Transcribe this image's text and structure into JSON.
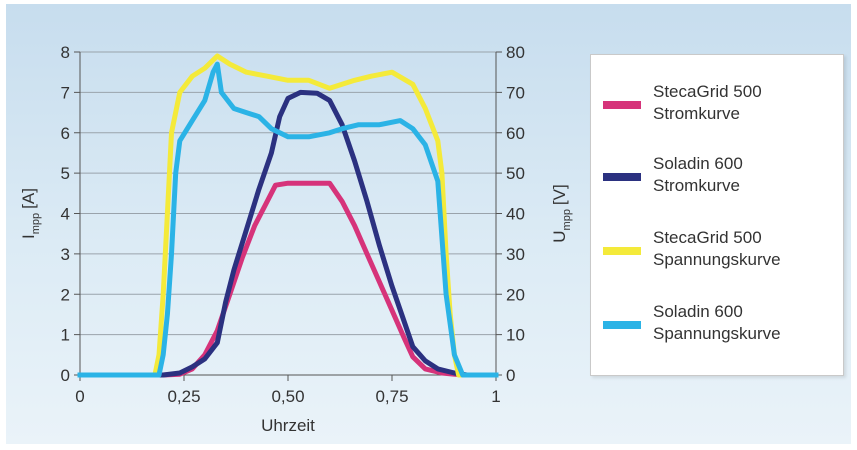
{
  "chart_data": {
    "type": "line",
    "x_axis": {
      "label": "Uhrzeit",
      "range": [
        0,
        1
      ],
      "ticks": [
        0,
        0.25,
        0.5,
        0.75,
        1
      ],
      "tick_labels": [
        "0",
        "0,25",
        "0,50",
        "0,75",
        "1"
      ]
    },
    "y_left": {
      "label": "I",
      "label_subscript": "mpp",
      "unit": "[A]",
      "range": [
        0,
        8
      ],
      "ticks": [
        0,
        1,
        2,
        3,
        4,
        5,
        6,
        7,
        8
      ],
      "tick_labels": [
        "0",
        "1",
        "2",
        "3",
        "4",
        "5",
        "6",
        "7",
        "8"
      ]
    },
    "y_right": {
      "label": "U",
      "label_subscript": "mpp",
      "unit": "[V]",
      "range": [
        0,
        80
      ],
      "ticks": [
        0,
        10,
        20,
        30,
        40,
        50,
        60,
        70,
        80
      ],
      "tick_labels": [
        "0",
        "10",
        "20",
        "30",
        "40",
        "50",
        "60",
        "70",
        "80"
      ]
    },
    "grid": true,
    "legend_position": "right",
    "series": [
      {
        "name": "StecaGrid 500 Stromkurve",
        "axis": "left",
        "color": "#d6337a",
        "points": [
          [
            0,
            0
          ],
          [
            0.2,
            0
          ],
          [
            0.24,
            0.02
          ],
          [
            0.27,
            0.15
          ],
          [
            0.3,
            0.5
          ],
          [
            0.33,
            1.1
          ],
          [
            0.36,
            2.0
          ],
          [
            0.39,
            2.9
          ],
          [
            0.42,
            3.7
          ],
          [
            0.45,
            4.3
          ],
          [
            0.47,
            4.7
          ],
          [
            0.5,
            4.75
          ],
          [
            0.55,
            4.75
          ],
          [
            0.6,
            4.75
          ],
          [
            0.63,
            4.3
          ],
          [
            0.66,
            3.7
          ],
          [
            0.69,
            3.0
          ],
          [
            0.72,
            2.3
          ],
          [
            0.75,
            1.6
          ],
          [
            0.78,
            0.9
          ],
          [
            0.8,
            0.45
          ],
          [
            0.83,
            0.15
          ],
          [
            0.87,
            0.05
          ],
          [
            0.92,
            0
          ],
          [
            1,
            0
          ]
        ]
      },
      {
        "name": "Soladin 600 Stromkurve",
        "axis": "left",
        "color": "#2b3180",
        "points": [
          [
            0,
            0
          ],
          [
            0.2,
            0
          ],
          [
            0.24,
            0.05
          ],
          [
            0.27,
            0.2
          ],
          [
            0.3,
            0.4
          ],
          [
            0.33,
            0.8
          ],
          [
            0.35,
            1.8
          ],
          [
            0.37,
            2.6
          ],
          [
            0.4,
            3.6
          ],
          [
            0.43,
            4.6
          ],
          [
            0.46,
            5.5
          ],
          [
            0.48,
            6.4
          ],
          [
            0.5,
            6.85
          ],
          [
            0.53,
            7.0
          ],
          [
            0.57,
            6.98
          ],
          [
            0.6,
            6.8
          ],
          [
            0.63,
            6.2
          ],
          [
            0.66,
            5.3
          ],
          [
            0.69,
            4.3
          ],
          [
            0.72,
            3.2
          ],
          [
            0.75,
            2.2
          ],
          [
            0.78,
            1.3
          ],
          [
            0.8,
            0.7
          ],
          [
            0.83,
            0.35
          ],
          [
            0.86,
            0.15
          ],
          [
            0.9,
            0.05
          ],
          [
            0.93,
            0
          ],
          [
            1,
            0
          ]
        ]
      },
      {
        "name": "StecaGrid 500 Spannungskurve",
        "axis": "right",
        "color": "#f4ea3a",
        "points": [
          [
            0,
            0
          ],
          [
            0.18,
            0
          ],
          [
            0.19,
            5
          ],
          [
            0.2,
            20
          ],
          [
            0.21,
            40
          ],
          [
            0.22,
            60
          ],
          [
            0.24,
            70
          ],
          [
            0.27,
            74
          ],
          [
            0.3,
            76
          ],
          [
            0.33,
            79
          ],
          [
            0.36,
            77
          ],
          [
            0.4,
            75
          ],
          [
            0.45,
            74
          ],
          [
            0.5,
            73
          ],
          [
            0.55,
            73
          ],
          [
            0.6,
            71
          ],
          [
            0.63,
            72
          ],
          [
            0.66,
            73
          ],
          [
            0.7,
            74
          ],
          [
            0.75,
            75
          ],
          [
            0.8,
            72
          ],
          [
            0.83,
            66
          ],
          [
            0.86,
            58
          ],
          [
            0.87,
            50
          ],
          [
            0.88,
            30
          ],
          [
            0.89,
            15
          ],
          [
            0.9,
            5
          ],
          [
            0.91,
            0
          ],
          [
            1,
            0
          ]
        ]
      },
      {
        "name": "Soladin 600 Spannungskurve",
        "axis": "right",
        "color": "#2bb3e6",
        "points": [
          [
            0,
            0
          ],
          [
            0.19,
            0
          ],
          [
            0.2,
            5
          ],
          [
            0.21,
            15
          ],
          [
            0.22,
            30
          ],
          [
            0.23,
            50
          ],
          [
            0.24,
            58
          ],
          [
            0.27,
            63
          ],
          [
            0.3,
            68
          ],
          [
            0.32,
            75
          ],
          [
            0.33,
            77
          ],
          [
            0.34,
            70
          ],
          [
            0.37,
            66
          ],
          [
            0.4,
            65
          ],
          [
            0.43,
            64
          ],
          [
            0.46,
            61
          ],
          [
            0.5,
            59
          ],
          [
            0.55,
            59
          ],
          [
            0.6,
            60
          ],
          [
            0.63,
            61
          ],
          [
            0.67,
            62
          ],
          [
            0.72,
            62
          ],
          [
            0.77,
            63
          ],
          [
            0.8,
            61
          ],
          [
            0.83,
            57
          ],
          [
            0.86,
            48
          ],
          [
            0.88,
            20
          ],
          [
            0.9,
            5
          ],
          [
            0.92,
            0
          ],
          [
            1,
            0
          ]
        ]
      }
    ]
  },
  "legend": [
    {
      "line1": "StecaGrid 500",
      "line2": "Stromkurve",
      "color": "#d6337a"
    },
    {
      "line1": "Soladin 600",
      "line2": "Stromkurve",
      "color": "#2b3180"
    },
    {
      "line1": "StecaGrid 500",
      "line2": "Spannungskurve",
      "color": "#f4ea3a"
    },
    {
      "line1": "Soladin 600",
      "line2": "Spannungskurve",
      "color": "#2bb3e6"
    }
  ]
}
